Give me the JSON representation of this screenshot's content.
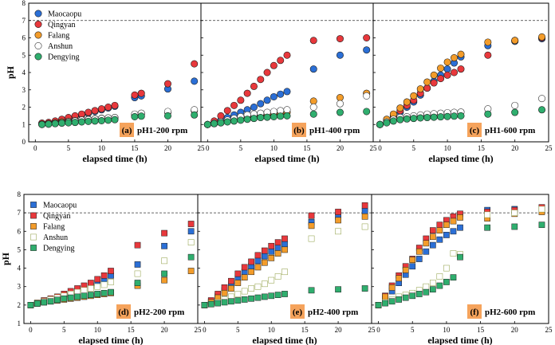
{
  "figure": {
    "series_names": [
      "Maocaopu",
      "Qingyan",
      "Falang",
      "Anshun",
      "Dengying"
    ],
    "colors": {
      "Maocaopu": "#2b6fd6",
      "Qingyan": "#e8383c",
      "Falang": "#f39c2a",
      "Anshun": "#ffffff",
      "Dengying": "#2fae6e",
      "anshun_edge": "#8a9a3c",
      "badge": "#f5a35c"
    }
  },
  "chart_data": [
    {
      "type": "scatter",
      "panel": "a",
      "badge": "(a)",
      "title": "pH1-200 rpm",
      "xlabel": "elapsed time (h)",
      "ylabel": "pH",
      "xlim": [
        -1,
        25
      ],
      "ylim": [
        0,
        8
      ],
      "xticks": [
        0,
        5,
        10,
        15,
        20,
        25
      ],
      "yticks": [
        0,
        1,
        2,
        3,
        4,
        5,
        6,
        7,
        8
      ],
      "ytick_labels": [
        "0",
        "1",
        "2",
        "3",
        "4",
        "5",
        "6",
        "7",
        "8"
      ],
      "reference_line": 7,
      "marker": "circle",
      "legend": true,
      "x": [
        1,
        2,
        3,
        4,
        5,
        6,
        7,
        8,
        9,
        10,
        11,
        12,
        15,
        16,
        20,
        24
      ],
      "series": [
        {
          "name": "Maocaopu",
          "values": [
            1.05,
            1.1,
            1.15,
            1.25,
            1.35,
            1.45,
            1.55,
            1.65,
            1.75,
            1.85,
            1.95,
            2.05,
            2.55,
            2.65,
            3.05,
            3.5
          ]
        },
        {
          "name": "Qingyan",
          "values": [
            1.08,
            1.12,
            1.2,
            1.3,
            1.4,
            1.5,
            1.6,
            1.7,
            1.8,
            1.9,
            2.0,
            2.1,
            2.7,
            2.8,
            3.35,
            4.5
          ]
        },
        {
          "name": "Falang",
          "values": [
            1.02,
            1.05,
            1.1,
            1.15,
            1.18,
            1.22,
            1.26,
            1.3,
            1.33,
            1.36,
            1.38,
            1.4,
            1.55,
            1.6,
            1.7,
            1.8
          ]
        },
        {
          "name": "Anshun",
          "values": [
            1.0,
            1.03,
            1.07,
            1.1,
            1.15,
            1.2,
            1.25,
            1.28,
            1.32,
            1.35,
            1.38,
            1.4,
            1.6,
            1.65,
            1.75,
            1.85
          ]
        },
        {
          "name": "Dengying",
          "values": [
            1.0,
            1.02,
            1.05,
            1.08,
            1.1,
            1.12,
            1.15,
            1.18,
            1.2,
            1.22,
            1.25,
            1.28,
            1.45,
            1.48,
            1.5,
            1.55
          ]
        }
      ]
    },
    {
      "type": "scatter",
      "panel": "b",
      "badge": "(b)",
      "title": "pH1-400 rpm",
      "xlabel": "elapsed time (h)",
      "ylabel": "",
      "xlim": [
        -1,
        25
      ],
      "ylim": [
        0,
        8
      ],
      "xticks": [
        0,
        5,
        10,
        15,
        20,
        25
      ],
      "yticks": [
        0,
        1,
        2,
        3,
        4,
        5,
        6,
        7,
        8
      ],
      "ytick_labels": [],
      "reference_line": 7,
      "marker": "circle",
      "legend": false,
      "x": [
        0,
        1,
        2,
        3,
        4,
        5,
        6,
        7,
        8,
        9,
        10,
        11,
        12,
        16,
        20,
        24
      ],
      "series": [
        {
          "name": "Maocaopu",
          "values": [
            1.0,
            1.1,
            1.25,
            1.4,
            1.55,
            1.7,
            1.85,
            2.0,
            2.2,
            2.4,
            2.6,
            2.75,
            2.9,
            4.2,
            5.0,
            5.3
          ]
        },
        {
          "name": "Qingyan",
          "values": [
            1.0,
            1.2,
            1.5,
            1.8,
            2.1,
            2.4,
            2.8,
            3.2,
            3.6,
            4.0,
            4.4,
            4.7,
            5.0,
            5.85,
            5.95,
            6.0
          ]
        },
        {
          "name": "Falang",
          "values": [
            1.0,
            1.05,
            1.1,
            1.2,
            1.3,
            1.35,
            1.4,
            1.45,
            1.5,
            1.55,
            1.6,
            1.65,
            1.7,
            2.35,
            2.55,
            2.8
          ]
        },
        {
          "name": "Anshun",
          "values": [
            1.0,
            1.08,
            1.15,
            1.25,
            1.35,
            1.45,
            1.55,
            1.6,
            1.65,
            1.7,
            1.75,
            1.8,
            1.85,
            2.0,
            2.2,
            2.65
          ]
        },
        {
          "name": "Dengying",
          "values": [
            1.0,
            1.05,
            1.1,
            1.15,
            1.2,
            1.25,
            1.3,
            1.35,
            1.4,
            1.42,
            1.45,
            1.48,
            1.5,
            1.6,
            1.7,
            1.75
          ]
        }
      ]
    },
    {
      "type": "scatter",
      "panel": "c",
      "badge": "(c)",
      "title": "pH1-600 rpm",
      "xlabel": "elapsed time (h)",
      "ylabel": "",
      "xlim": [
        -1,
        25
      ],
      "ylim": [
        0,
        8
      ],
      "xticks": [
        0,
        5,
        10,
        15,
        20,
        25
      ],
      "yticks": [
        0,
        1,
        2,
        3,
        4,
        5,
        6,
        7,
        8
      ],
      "ytick_labels": [],
      "reference_line": 7,
      "marker": "circle",
      "legend": false,
      "x": [
        0,
        1,
        2,
        3,
        4,
        5,
        6,
        7,
        8,
        9,
        10,
        11,
        12,
        16,
        20,
        24
      ],
      "series": [
        {
          "name": "Maocaopu",
          "values": [
            1.0,
            1.2,
            1.45,
            1.7,
            2.0,
            2.3,
            2.7,
            3.1,
            3.5,
            3.85,
            4.2,
            4.55,
            4.9,
            5.55,
            5.8,
            5.95
          ]
        },
        {
          "name": "Qingyan",
          "values": [
            1.0,
            1.25,
            1.5,
            1.8,
            2.1,
            2.4,
            2.8,
            3.1,
            3.4,
            3.65,
            3.85,
            4.0,
            4.2,
            5.0,
            5.85,
            6.0
          ]
        },
        {
          "name": "Falang",
          "values": [
            1.0,
            1.3,
            1.6,
            1.95,
            2.3,
            2.65,
            3.05,
            3.45,
            3.85,
            4.25,
            4.6,
            4.85,
            5.05,
            5.75,
            5.85,
            6.05
          ]
        },
        {
          "name": "Anshun",
          "values": [
            1.0,
            1.15,
            1.3,
            1.4,
            1.45,
            1.5,
            1.55,
            1.6,
            1.62,
            1.65,
            1.68,
            1.7,
            1.72,
            1.9,
            2.1,
            2.5
          ]
        },
        {
          "name": "Dengying",
          "values": [
            1.0,
            1.1,
            1.2,
            1.28,
            1.32,
            1.35,
            1.38,
            1.4,
            1.42,
            1.44,
            1.46,
            1.48,
            1.5,
            1.6,
            1.7,
            1.85
          ]
        }
      ]
    },
    {
      "type": "scatter",
      "panel": "d",
      "badge": "(d)",
      "title": "pH2-200 rpm",
      "xlabel": "elapsed time (h)",
      "ylabel": "pH",
      "xlim": [
        -1,
        25
      ],
      "ylim": [
        1,
        8
      ],
      "xticks": [
        0,
        5,
        10,
        15,
        20,
        25
      ],
      "yticks": [
        1,
        2,
        3,
        4,
        5,
        6,
        7,
        8
      ],
      "ytick_labels": [
        "1",
        "2",
        "3",
        "4",
        "5",
        "6",
        "7",
        "8"
      ],
      "reference_line": 7,
      "marker": "square",
      "legend": true,
      "x": [
        0,
        1,
        2,
        3,
        4,
        5,
        6,
        7,
        8,
        9,
        10,
        11,
        12,
        16,
        20,
        24
      ],
      "series": [
        {
          "name": "Maocaopu",
          "values": [
            2.0,
            2.1,
            2.2,
            2.3,
            2.4,
            2.5,
            2.6,
            2.75,
            2.9,
            3.05,
            3.2,
            3.4,
            3.6,
            4.2,
            5.2,
            6.0
          ]
        },
        {
          "name": "Qingyan",
          "values": [
            2.0,
            2.12,
            2.25,
            2.35,
            2.45,
            2.6,
            2.75,
            2.9,
            3.05,
            3.2,
            3.4,
            3.6,
            3.85,
            5.25,
            5.9,
            6.4
          ]
        },
        {
          "name": "Falang",
          "values": [
            2.0,
            2.08,
            2.15,
            2.2,
            2.25,
            2.3,
            2.35,
            2.4,
            2.45,
            2.5,
            2.55,
            2.6,
            2.65,
            3.05,
            3.35,
            3.85
          ]
        },
        {
          "name": "Anshun",
          "values": [
            2.0,
            2.1,
            2.2,
            2.3,
            2.4,
            2.5,
            2.6,
            2.7,
            2.8,
            2.9,
            3.0,
            3.1,
            3.25,
            3.7,
            4.4,
            5.4
          ]
        },
        {
          "name": "Dengying",
          "values": [
            2.0,
            2.08,
            2.15,
            2.2,
            2.28,
            2.35,
            2.4,
            2.45,
            2.5,
            2.55,
            2.6,
            2.65,
            2.7,
            3.2,
            3.7,
            4.6
          ]
        }
      ]
    },
    {
      "type": "scatter",
      "panel": "e",
      "badge": "(e)",
      "title": "pH2-400 rpm",
      "xlabel": "elapsed time (h)",
      "ylabel": "",
      "xlim": [
        -1,
        25
      ],
      "ylim": [
        1,
        8
      ],
      "xticks": [
        0,
        5,
        10,
        15,
        20,
        25
      ],
      "yticks": [
        1,
        2,
        3,
        4,
        5,
        6,
        7,
        8
      ],
      "ytick_labels": [],
      "reference_line": 7,
      "marker": "square",
      "legend": false,
      "x": [
        0,
        1,
        2,
        3,
        4,
        5,
        6,
        7,
        8,
        9,
        10,
        11,
        12,
        16,
        20,
        24
      ],
      "series": [
        {
          "name": "Maocaopu",
          "values": [
            2.0,
            2.2,
            2.5,
            2.8,
            3.1,
            3.45,
            3.8,
            4.1,
            4.4,
            4.65,
            4.9,
            5.1,
            5.3,
            6.5,
            6.8,
            7.1
          ]
        },
        {
          "name": "Qingyan",
          "values": [
            2.0,
            2.25,
            2.6,
            2.95,
            3.3,
            3.7,
            4.05,
            4.35,
            4.7,
            4.95,
            5.2,
            5.4,
            5.6,
            6.85,
            7.05,
            7.4
          ]
        },
        {
          "name": "Falang",
          "values": [
            2.0,
            2.15,
            2.4,
            2.65,
            2.9,
            3.2,
            3.5,
            3.8,
            4.05,
            4.3,
            4.55,
            4.8,
            5.0,
            6.3,
            6.6,
            6.8
          ]
        },
        {
          "name": "Anshun",
          "values": [
            2.0,
            2.05,
            2.15,
            2.3,
            2.45,
            2.6,
            2.75,
            2.9,
            3.0,
            3.15,
            3.35,
            3.55,
            3.8,
            5.6,
            6.0,
            6.25
          ]
        },
        {
          "name": "Dengying",
          "values": [
            2.0,
            2.05,
            2.1,
            2.15,
            2.2,
            2.25,
            2.3,
            2.35,
            2.4,
            2.45,
            2.5,
            2.55,
            2.6,
            2.8,
            2.85,
            2.9
          ]
        }
      ]
    },
    {
      "type": "scatter",
      "panel": "f",
      "badge": "(f)",
      "title": "pH2-600 rpm",
      "xlabel": "elapsed time (h)",
      "ylabel": "",
      "xlim": [
        -1,
        25
      ],
      "ylim": [
        1,
        8
      ],
      "xticks": [
        0,
        5,
        10,
        15,
        20,
        25
      ],
      "yticks": [
        1,
        2,
        3,
        4,
        5,
        6,
        7,
        8
      ],
      "ytick_labels": [],
      "reference_line": 7,
      "marker": "square",
      "legend": false,
      "x": [
        0,
        1,
        2,
        3,
        4,
        5,
        6,
        7,
        8,
        9,
        10,
        11,
        12,
        16,
        20,
        24
      ],
      "series": [
        {
          "name": "Maocaopu",
          "values": [
            2.0,
            2.35,
            2.75,
            3.2,
            3.65,
            4.1,
            4.5,
            4.9,
            5.25,
            5.55,
            5.8,
            6.0,
            6.2,
            7.15,
            7.2,
            7.25
          ]
        },
        {
          "name": "Qingyan",
          "values": [
            2.0,
            2.5,
            3.05,
            3.6,
            4.1,
            4.5,
            5.1,
            5.6,
            6.05,
            6.35,
            6.6,
            6.8,
            6.95,
            7.05,
            7.15,
            7.3
          ]
        },
        {
          "name": "Falang",
          "values": [
            2.0,
            2.45,
            2.95,
            3.45,
            3.9,
            4.45,
            4.9,
            5.35,
            5.7,
            6.05,
            6.35,
            6.55,
            6.75,
            6.7,
            6.95,
            7.05
          ]
        },
        {
          "name": "Anshun",
          "values": [
            2.0,
            2.15,
            2.3,
            2.45,
            2.55,
            2.65,
            2.8,
            3.0,
            3.2,
            3.55,
            4.0,
            4.8,
            4.75,
            6.9,
            7.0,
            7.2
          ]
        },
        {
          "name": "Dengying",
          "values": [
            2.0,
            2.1,
            2.2,
            2.3,
            2.4,
            2.5,
            2.6,
            2.7,
            2.85,
            3.05,
            3.25,
            3.5,
            4.6,
            6.2,
            6.25,
            6.35
          ]
        }
      ]
    }
  ]
}
